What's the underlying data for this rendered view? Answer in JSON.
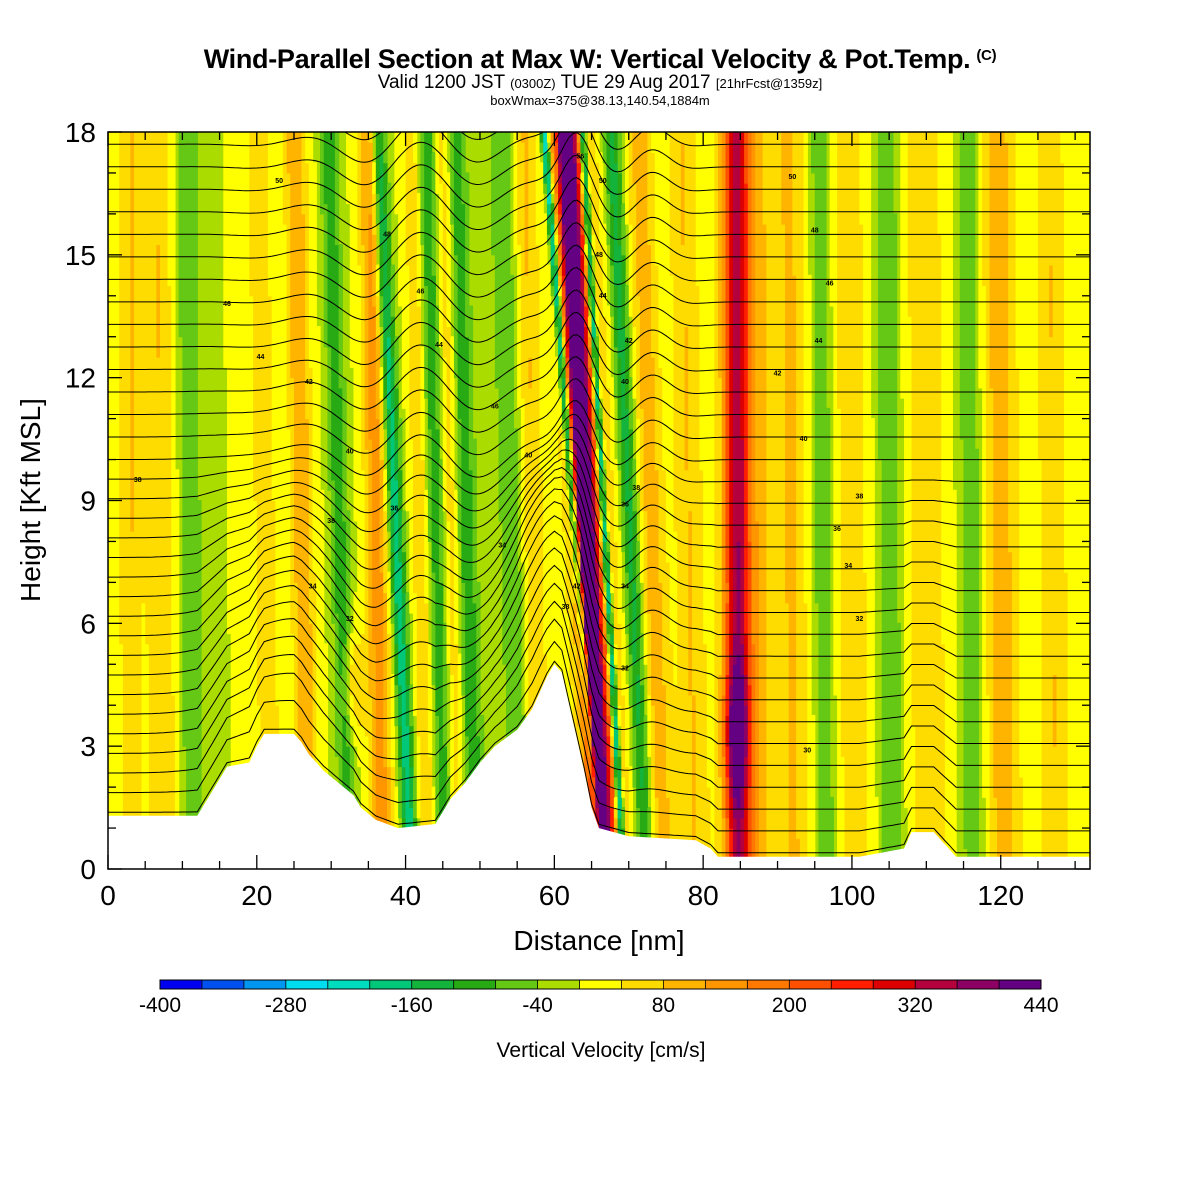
{
  "header": {
    "title": "Wind-Parallel Section at Max W: Vertical Velocity & Pot.Temp.",
    "copyright": "(C)",
    "valid_prefix": "Valid 1200 JST",
    "valid_utc": "(0300Z)",
    "valid_date": "TUE 29 Aug 2017",
    "forecast": "[21hrFcst@1359z]",
    "box_wmax": "boxWmax=375@38.13,140.54,1884m"
  },
  "chart_data": {
    "type": "heatmap",
    "xlabel": "Distance [nm]",
    "ylabel": "Height [Kft MSL]",
    "xlim": [
      0,
      132
    ],
    "ylim": [
      0,
      18
    ],
    "xticks": [
      0,
      20,
      40,
      60,
      80,
      100,
      120
    ],
    "yticks": [
      0,
      3,
      6,
      9,
      12,
      15,
      18
    ],
    "colorbar": {
      "label": "Vertical Velocity [cm/s]",
      "tick_labels": [
        "-400",
        "-280",
        "-160",
        "-40",
        "80",
        "200",
        "320",
        "440"
      ],
      "tick_values": [
        -400,
        -280,
        -160,
        -40,
        80,
        200,
        320,
        440
      ],
      "min": -400,
      "max": 440,
      "step": 40,
      "colors": [
        "#0000f0",
        "#0050f0",
        "#0096f0",
        "#00dcf0",
        "#00dcbe",
        "#00c878",
        "#14b43c",
        "#28aa14",
        "#64c814",
        "#aadc00",
        "#ffff00",
        "#ffdc00",
        "#ffb400",
        "#ff9600",
        "#ff7800",
        "#ff5000",
        "#ff1e00",
        "#dc0000",
        "#b4003c",
        "#8c0064",
        "#640082"
      ]
    },
    "terrain_kft": [
      [
        0,
        1.3
      ],
      [
        12,
        1.3
      ],
      [
        13,
        1.6
      ],
      [
        14,
        1.9
      ],
      [
        15,
        2.2
      ],
      [
        16,
        2.5
      ],
      [
        19,
        2.6
      ],
      [
        20,
        3.0
      ],
      [
        21,
        3.3
      ],
      [
        25,
        3.3
      ],
      [
        26,
        3.1
      ],
      [
        27,
        2.8
      ],
      [
        29,
        2.4
      ],
      [
        31,
        2.1
      ],
      [
        33,
        1.8
      ],
      [
        34,
        1.5
      ],
      [
        36,
        1.2
      ],
      [
        39,
        1.0
      ],
      [
        44,
        1.1
      ],
      [
        45,
        1.4
      ],
      [
        46,
        1.7
      ],
      [
        48,
        2.1
      ],
      [
        50,
        2.6
      ],
      [
        52,
        3.0
      ],
      [
        55,
        3.4
      ],
      [
        57,
        3.9
      ],
      [
        58,
        4.3
      ],
      [
        59,
        4.7
      ],
      [
        60,
        5.0
      ],
      [
        61,
        4.8
      ],
      [
        62,
        4.0
      ],
      [
        63,
        3.2
      ],
      [
        64,
        2.4
      ],
      [
        65,
        1.5
      ],
      [
        66,
        1.0
      ],
      [
        70,
        0.8
      ],
      [
        79,
        0.7
      ],
      [
        81,
        0.5
      ],
      [
        82,
        0.3
      ],
      [
        101,
        0.3
      ],
      [
        107,
        0.5
      ],
      [
        108,
        0.9
      ],
      [
        111,
        0.9
      ],
      [
        113,
        0.5
      ],
      [
        114,
        0.3
      ],
      [
        132,
        0.3
      ]
    ],
    "theta_labels": [
      {
        "text": "50",
        "x": 23,
        "y": 16.8
      },
      {
        "text": "48",
        "x": 37.5,
        "y": 15.5
      },
      {
        "text": "46",
        "x": 16,
        "y": 13.8
      },
      {
        "text": "46",
        "x": 42,
        "y": 14.1
      },
      {
        "text": "44",
        "x": 20.5,
        "y": 12.5
      },
      {
        "text": "44",
        "x": 44.5,
        "y": 12.8
      },
      {
        "text": "42",
        "x": 27,
        "y": 11.9
      },
      {
        "text": "40",
        "x": 32.5,
        "y": 10.2
      },
      {
        "text": "46",
        "x": 52,
        "y": 11.3
      },
      {
        "text": "40",
        "x": 56.5,
        "y": 10.1
      },
      {
        "text": "38",
        "x": 4,
        "y": 9.5
      },
      {
        "text": "38",
        "x": 30,
        "y": 8.5
      },
      {
        "text": "36",
        "x": 38.5,
        "y": 8.8
      },
      {
        "text": "34",
        "x": 27.5,
        "y": 6.9
      },
      {
        "text": "34",
        "x": 53,
        "y": 7.9
      },
      {
        "text": "32",
        "x": 32.5,
        "y": 6.1
      },
      {
        "text": "42",
        "x": 63,
        "y": 6.9
      },
      {
        "text": "38",
        "x": 61.5,
        "y": 6.4
      },
      {
        "text": "56",
        "x": 63.5,
        "y": 17.4
      },
      {
        "text": "50",
        "x": 66.5,
        "y": 16.8
      },
      {
        "text": "48",
        "x": 66,
        "y": 15.0
      },
      {
        "text": "44",
        "x": 66.5,
        "y": 14.0
      },
      {
        "text": "42",
        "x": 70,
        "y": 12.9
      },
      {
        "text": "40",
        "x": 69.5,
        "y": 11.9
      },
      {
        "text": "38",
        "x": 71,
        "y": 9.3
      },
      {
        "text": "36",
        "x": 69.5,
        "y": 8.9
      },
      {
        "text": "34",
        "x": 69.5,
        "y": 6.9
      },
      {
        "text": "32",
        "x": 69.5,
        "y": 4.9
      },
      {
        "text": "50",
        "x": 92,
        "y": 16.9
      },
      {
        "text": "48",
        "x": 95,
        "y": 15.6
      },
      {
        "text": "46",
        "x": 97,
        "y": 14.3
      },
      {
        "text": "44",
        "x": 95.5,
        "y": 12.9
      },
      {
        "text": "42",
        "x": 90,
        "y": 12.1
      },
      {
        "text": "40",
        "x": 93.5,
        "y": 10.5
      },
      {
        "text": "38",
        "x": 101,
        "y": 9.1
      },
      {
        "text": "36",
        "x": 98,
        "y": 8.3
      },
      {
        "text": "34",
        "x": 99.5,
        "y": 7.4
      },
      {
        "text": "32",
        "x": 101,
        "y": 6.1
      },
      {
        "text": "30",
        "x": 94,
        "y": 2.9
      }
    ]
  }
}
